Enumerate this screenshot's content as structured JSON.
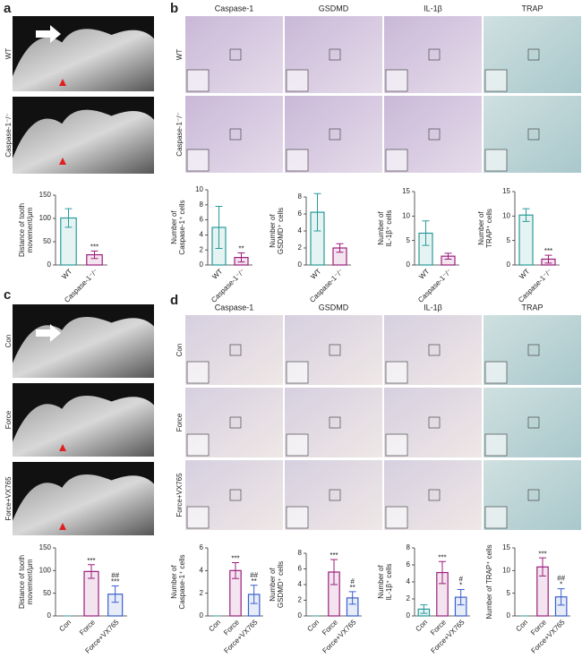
{
  "figure": {
    "panel_labels": [
      "a",
      "b",
      "c",
      "d"
    ],
    "a_rows": [
      "WT",
      "Caspase-1⁻/⁻"
    ],
    "b_columns": [
      "Caspase-1",
      "GSDMD",
      "IL-1β",
      "TRAP"
    ],
    "b_rows": [
      "WT",
      "Caspase-1⁻/⁻"
    ],
    "c_rows": [
      "Con",
      "Force",
      "Force+VX765"
    ],
    "d_columns": [
      "Caspase-1",
      "GSDMD",
      "IL-1β",
      "TRAP"
    ],
    "d_rows": [
      "Con",
      "Force",
      "Force+VX765"
    ]
  },
  "chart_data": [
    {
      "type": "bar",
      "ylabel": [
        "Distance of tooth",
        "movement/μm"
      ],
      "categories": [
        "WT",
        "Caspase-1⁻/⁻"
      ],
      "values": [
        101,
        22
      ],
      "errors": [
        20,
        8
      ],
      "colors": [
        "#2a9a9a",
        "#9c1f7c"
      ],
      "annotations": [
        [],
        [
          "***"
        ]
      ],
      "ylim": [
        0,
        150
      ],
      "yticks": [
        0,
        50,
        100,
        150
      ]
    },
    {
      "type": "bar",
      "ylabel": [
        "Number of",
        "Caspase-1⁺ cells"
      ],
      "categories": [
        "WT",
        "Caspase-1⁻/⁻"
      ],
      "values": [
        5,
        1
      ],
      "errors": [
        2.8,
        0.6
      ],
      "colors": [
        "#2a9a9a",
        "#9c1f7c"
      ],
      "annotations": [
        [],
        [
          "**"
        ]
      ],
      "ylim": [
        0,
        10
      ],
      "yticks": [
        0,
        2,
        4,
        6,
        8,
        10
      ]
    },
    {
      "type": "bar",
      "ylabel": [
        "Number of",
        "GSDMD⁺ cells"
      ],
      "categories": [
        "WT",
        "Caspase-1⁻/⁻"
      ],
      "values": [
        6.2,
        2
      ],
      "errors": [
        2.2,
        0.5
      ],
      "colors": [
        "#2a9a9a",
        "#9c1f7c"
      ],
      "annotations": [
        [],
        []
      ],
      "ylim": [
        0,
        8
      ],
      "yticks": [
        0,
        2,
        4,
        6,
        8
      ]
    },
    {
      "type": "bar",
      "ylabel": [
        "Number of",
        "IL-1β⁺ cells"
      ],
      "categories": [
        "WT",
        "Caspase-1⁻/⁻"
      ],
      "values": [
        6.5,
        1.8
      ],
      "errors": [
        2.5,
        0.6
      ],
      "colors": [
        "#2a9a9a",
        "#9c1f7c"
      ],
      "annotations": [
        [],
        []
      ],
      "ylim": [
        0,
        15
      ],
      "yticks": [
        0,
        5,
        10,
        15
      ]
    },
    {
      "type": "bar",
      "ylabel": [
        "Number of",
        "TRAP⁺ cells"
      ],
      "categories": [
        "WT",
        "Caspase-1⁻/⁻"
      ],
      "values": [
        10.2,
        1.2
      ],
      "errors": [
        1.3,
        0.8
      ],
      "colors": [
        "#2a9a9a",
        "#9c1f7c"
      ],
      "annotations": [
        [],
        [
          "***"
        ]
      ],
      "ylim": [
        0,
        15
      ],
      "yticks": [
        0,
        5,
        10,
        15
      ]
    },
    {
      "type": "bar",
      "ylabel": [
        "Distance of tooth",
        "movement/μm"
      ],
      "categories": [
        "Con",
        "Force",
        "Force+VX765"
      ],
      "values": [
        0,
        98,
        48
      ],
      "errors": [
        0,
        15,
        18
      ],
      "colors": [
        "#2a9a9a",
        "#9c1f7c",
        "#3a5fcd"
      ],
      "annotations": [
        [],
        [
          "***"
        ],
        [
          "##",
          "***"
        ]
      ],
      "ylim": [
        0,
        150
      ],
      "yticks": [
        0,
        50,
        100,
        150
      ]
    },
    {
      "type": "bar",
      "ylabel": [
        "Number of",
        "Caspase-1⁺ cells"
      ],
      "categories": [
        "Con",
        "Force",
        "Force+VX765"
      ],
      "values": [
        0,
        4,
        1.9
      ],
      "errors": [
        0,
        0.7,
        0.8
      ],
      "colors": [
        "#2a9a9a",
        "#9c1f7c",
        "#3a5fcd"
      ],
      "annotations": [
        [],
        [
          "***"
        ],
        [
          "##",
          "**"
        ]
      ],
      "ylim": [
        0,
        6
      ],
      "yticks": [
        0,
        2,
        4,
        6
      ]
    },
    {
      "type": "bar",
      "ylabel": [
        "Number of",
        "GSDMD⁺ cells"
      ],
      "categories": [
        "Con",
        "Force",
        "Force+VX765"
      ],
      "values": [
        0,
        5.6,
        2.3
      ],
      "errors": [
        0,
        1.6,
        0.8
      ],
      "colors": [
        "#2a9a9a",
        "#9c1f7c",
        "#3a5fcd"
      ],
      "annotations": [
        [],
        [
          "***"
        ],
        [
          "#",
          "**"
        ]
      ],
      "ylim": [
        0,
        8
      ],
      "yticks": [
        0,
        2,
        4,
        6,
        8
      ]
    },
    {
      "type": "bar",
      "ylabel": [
        "Number of",
        "IL-1β⁺ cells"
      ],
      "categories": [
        "Con",
        "Force",
        "Force+VX765"
      ],
      "values": [
        0.8,
        5.1,
        2.2
      ],
      "errors": [
        0.5,
        1.3,
        0.9
      ],
      "colors": [
        "#2a9a9a",
        "#9c1f7c",
        "#3a5fcd"
      ],
      "annotations": [
        [],
        [
          "***"
        ],
        [
          "#",
          "*"
        ]
      ],
      "ylim": [
        0,
        8
      ],
      "yticks": [
        0,
        2,
        4,
        6,
        8
      ]
    },
    {
      "type": "bar",
      "ylabel": [
        "Number of TRAP⁺ cells"
      ],
      "categories": [
        "Con",
        "Force",
        "Force+VX765"
      ],
      "values": [
        0,
        10.8,
        4.2
      ],
      "errors": [
        0,
        2,
        1.8
      ],
      "colors": [
        "#2a9a9a",
        "#9c1f7c",
        "#3a5fcd"
      ],
      "annotations": [
        [],
        [
          "***"
        ],
        [
          "##",
          "*"
        ]
      ],
      "ylim": [
        0,
        15
      ],
      "yticks": [
        0,
        5,
        10,
        15
      ]
    }
  ]
}
